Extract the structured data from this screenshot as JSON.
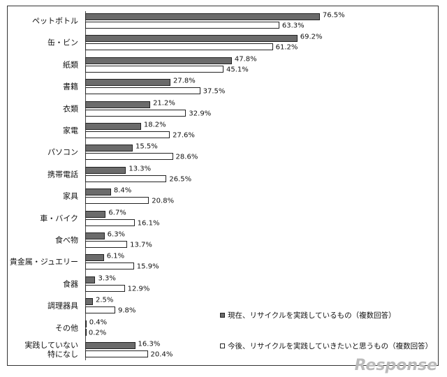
{
  "chart_data": {
    "type": "bar",
    "orientation": "horizontal",
    "categories": [
      "ペットボトル",
      "缶・ビン",
      "紙類",
      "書籍",
      "衣類",
      "家電",
      "パソコン",
      "携帯電話",
      "家具",
      "車・バイク",
      "食べ物",
      "貴金属・ジュエリー",
      "食器",
      "調理器具",
      "その他",
      "実践していない\n特になし"
    ],
    "series": [
      {
        "name": "現在、リサイクルを実践しているもの（複数回答）",
        "color": "#6b6b6b",
        "values": [
          76.5,
          69.2,
          47.8,
          27.8,
          21.2,
          18.2,
          15.5,
          13.3,
          8.4,
          6.7,
          6.3,
          6.1,
          3.3,
          2.5,
          0.4,
          16.3
        ],
        "value_labels": [
          "76.5%",
          "69.2%",
          "47.8%",
          "27.8%",
          "21.2%",
          "18.2%",
          "15.5%",
          "13.3%",
          "8.4%",
          "6.7%",
          "6.3%",
          "6.1%",
          "3.3%",
          "2.5%",
          "0.4%",
          "16.3%"
        ]
      },
      {
        "name": "今後、リサイクルを実践していきたいと思うもの（複数回答）",
        "color": "#ffffff",
        "values": [
          63.3,
          61.2,
          45.1,
          37.5,
          32.9,
          27.6,
          28.6,
          26.5,
          20.8,
          16.1,
          13.7,
          15.9,
          12.9,
          9.8,
          0.2,
          20.4
        ],
        "value_labels": [
          "63.3%",
          "61.2%",
          "45.1%",
          "37.5%",
          "32.9%",
          "27.6%",
          "28.6%",
          "26.5%",
          "20.8%",
          "16.1%",
          "13.7%",
          "15.9%",
          "12.9%",
          "9.8%",
          "0.2%",
          "20.4%"
        ]
      }
    ],
    "watermark": "Response"
  }
}
